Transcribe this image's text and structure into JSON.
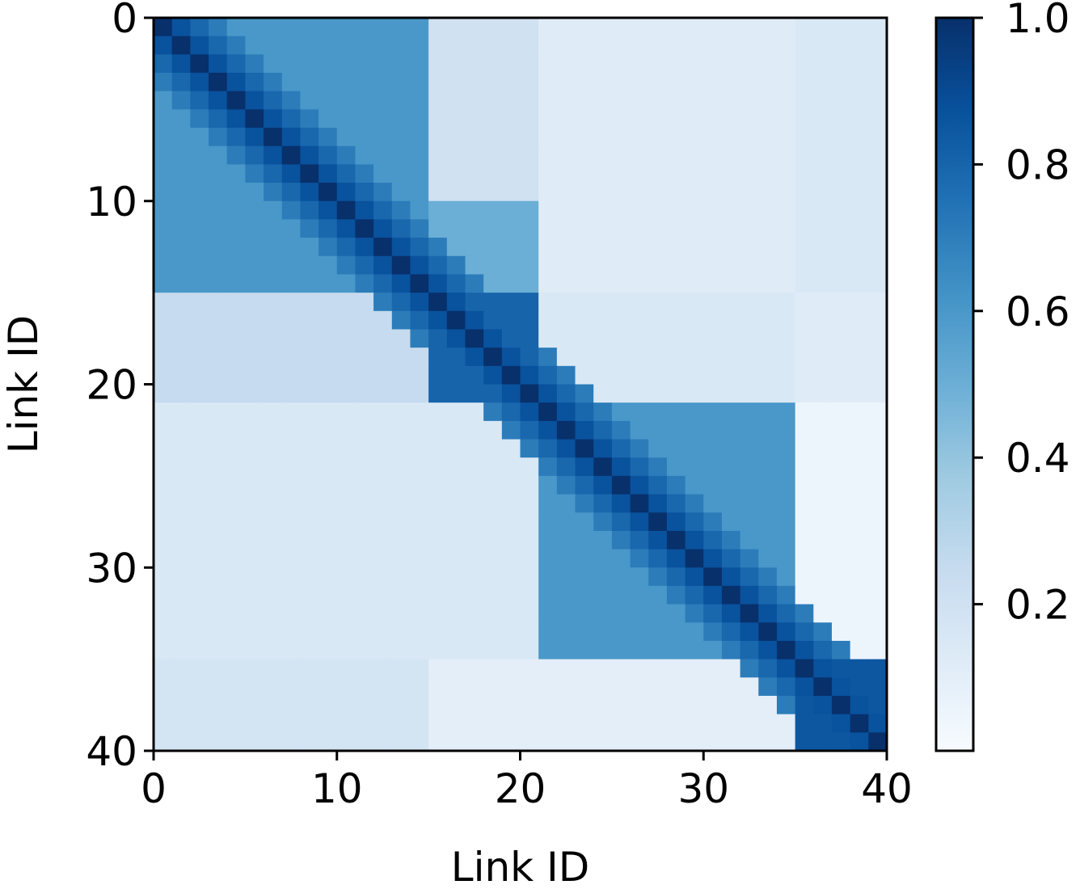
{
  "chart_data": {
    "type": "heatmap",
    "title": "",
    "xlabel": "Link ID",
    "ylabel": "Link ID",
    "n": 40,
    "x_ticks": [
      "0",
      "10",
      "20",
      "30",
      "40"
    ],
    "y_ticks": [
      "0",
      "10",
      "20",
      "30",
      "40"
    ],
    "colorbar": {
      "colormap": "Blues",
      "range": [
        0.0,
        1.0
      ],
      "ticks": [
        "0.2",
        "0.4",
        "0.6",
        "0.8",
        "1.0"
      ]
    },
    "blocks": [
      {
        "rows": [
          0,
          14
        ],
        "cols": [
          0,
          14
        ],
        "value": 0.6
      },
      {
        "rows": [
          0,
          14
        ],
        "cols": [
          15,
          20
        ],
        "value": 0.2
      },
      {
        "rows": [
          10,
          14
        ],
        "cols": [
          15,
          20
        ],
        "value": 0.5
      },
      {
        "rows": [
          0,
          14
        ],
        "cols": [
          21,
          34
        ],
        "value": 0.12
      },
      {
        "rows": [
          0,
          14
        ],
        "cols": [
          35,
          39
        ],
        "value": 0.15
      },
      {
        "rows": [
          15,
          20
        ],
        "cols": [
          0,
          14
        ],
        "value": 0.25
      },
      {
        "rows": [
          15,
          20
        ],
        "cols": [
          15,
          20
        ],
        "value": 0.8
      },
      {
        "rows": [
          15,
          20
        ],
        "cols": [
          21,
          34
        ],
        "value": 0.15
      },
      {
        "rows": [
          15,
          20
        ],
        "cols": [
          35,
          39
        ],
        "value": 0.12
      },
      {
        "rows": [
          21,
          34
        ],
        "cols": [
          0,
          20
        ],
        "value": 0.15
      },
      {
        "rows": [
          21,
          34
        ],
        "cols": [
          21,
          34
        ],
        "value": 0.6
      },
      {
        "rows": [
          21,
          34
        ],
        "cols": [
          35,
          39
        ],
        "value": 0.05
      },
      {
        "rows": [
          35,
          39
        ],
        "cols": [
          0,
          14
        ],
        "value": 0.18
      },
      {
        "rows": [
          35,
          39
        ],
        "cols": [
          15,
          34
        ],
        "value": 0.1
      },
      {
        "rows": [
          35,
          39
        ],
        "cols": [
          35,
          39
        ],
        "value": 0.85
      }
    ],
    "diagonal_value": 1.0
  }
}
